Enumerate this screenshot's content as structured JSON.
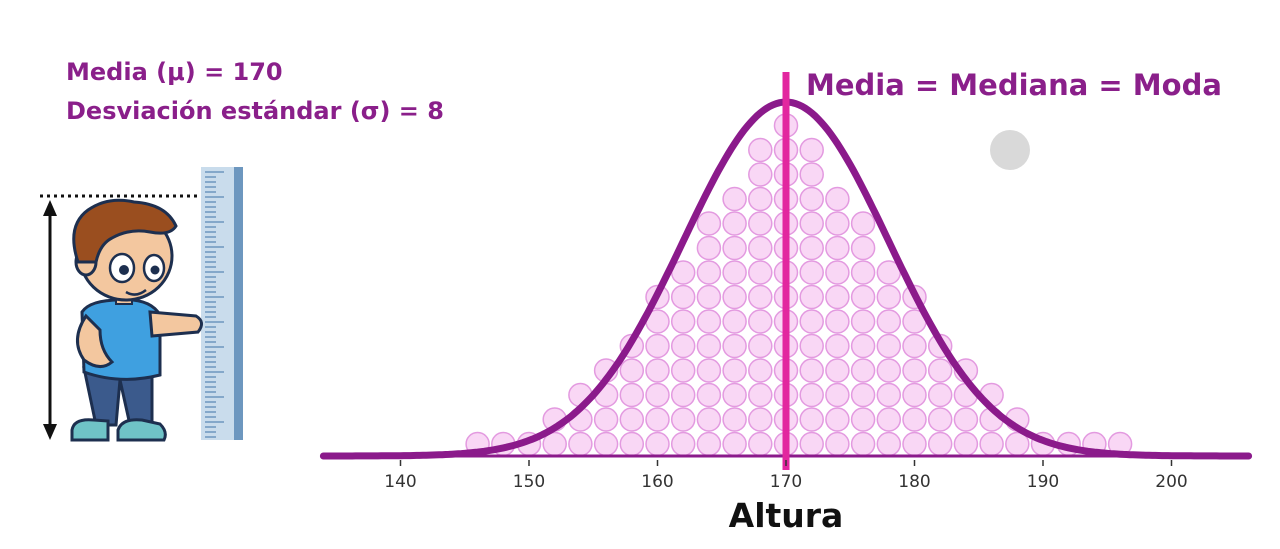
{
  "stats": {
    "mean_label": "Media (μ) = 170",
    "sd_label": "Desviación estándar (σ) = 8"
  },
  "annotation": "Media = Mediana = Moda",
  "colors": {
    "curve": "#8b1a8b",
    "mean_line": "#e2279f",
    "dots_fill": "#f7cdf2",
    "dots_stroke": "#e39ae0",
    "text": "#8a1f8a",
    "axis": "#8b1a8b"
  },
  "chart_data": {
    "type": "area",
    "title": "",
    "xlabel": "Altura",
    "ylabel": "",
    "distribution": "normal",
    "mean": 170,
    "sd": 8,
    "xlim": [
      134,
      206
    ],
    "xticks": [
      140,
      150,
      160,
      170,
      180,
      190,
      200
    ],
    "tick_labels": [
      "140",
      "150",
      "160",
      "170",
      "180",
      "190",
      "200"
    ],
    "vline_x": 170,
    "dot_columns": {
      "x": [
        146,
        148,
        150,
        152,
        154,
        156,
        158,
        160,
        162,
        164,
        166,
        168,
        170,
        172,
        174,
        176,
        178,
        180,
        182,
        184,
        186,
        188,
        190,
        192,
        194,
        196
      ],
      "counts": [
        1,
        1,
        1,
        2,
        3,
        4,
        5,
        7,
        8,
        10,
        11,
        13,
        14,
        13,
        11,
        10,
        8,
        7,
        5,
        4,
        3,
        2,
        1,
        1,
        1,
        1
      ]
    }
  }
}
